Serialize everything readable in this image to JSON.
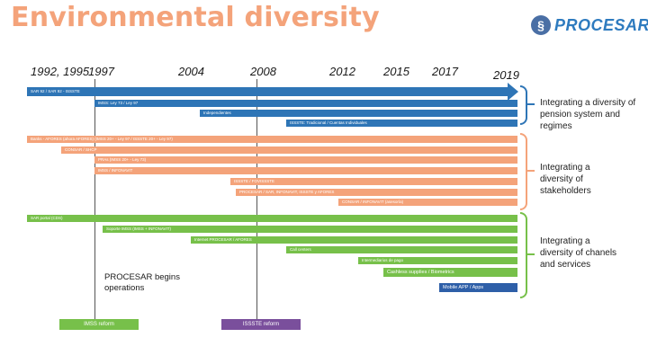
{
  "title": "Environmental diversity",
  "logo": {
    "text": "PROCESAR",
    "mark": "logo-mark"
  },
  "years": [
    "1992, 1995",
    "1997",
    "2004",
    "2008",
    "2012",
    "2015",
    "2017",
    "2019"
  ],
  "timeline_label": "SAR 92 / SAR 92 - ISSSTE",
  "regime_bars": [
    "IMSS: Ley 73 / Ley 97",
    "Independientes",
    "ISSSTE: Tradicional / Cuentas Individuales"
  ],
  "stakeholder_bars": [
    "Banks - AFORES (ahora AFORES) (IMSS 20+ - Ley 97 / ISSSTE 20+ - Ley 97)",
    "CONSAR / SHCP",
    "PRAs (IMSS 20+ - Ley 73)",
    "IMSS / INFONAVIT",
    "ISSSTE / FOVISSSTE",
    "PROCESAR / SAR, INFONAVIT, ISSSTE y AFORES",
    "CONSAR / INFONAVIT (asesoría)"
  ],
  "channel_bars": [
    "SAR portal (CDS)",
    "Soporte IMSS (IMSS + INFONAVIT)",
    "Internet PROCESAR / AFORES",
    "Call centers",
    "Intermediarios de pago",
    "Cashless supplies / Biometrics",
    "Mobile APP / Apps"
  ],
  "side_labels": {
    "regimes": "Integrating a diversity of pension system and regimes",
    "stakeholders": "Integrating a diversity of stakeholders",
    "channels": "Integrating a diversity of chanels and services"
  },
  "milestone_note": "PROCESAR begins operations",
  "reforms": [
    "IMSS reform",
    "ISSSTE reform"
  ]
}
